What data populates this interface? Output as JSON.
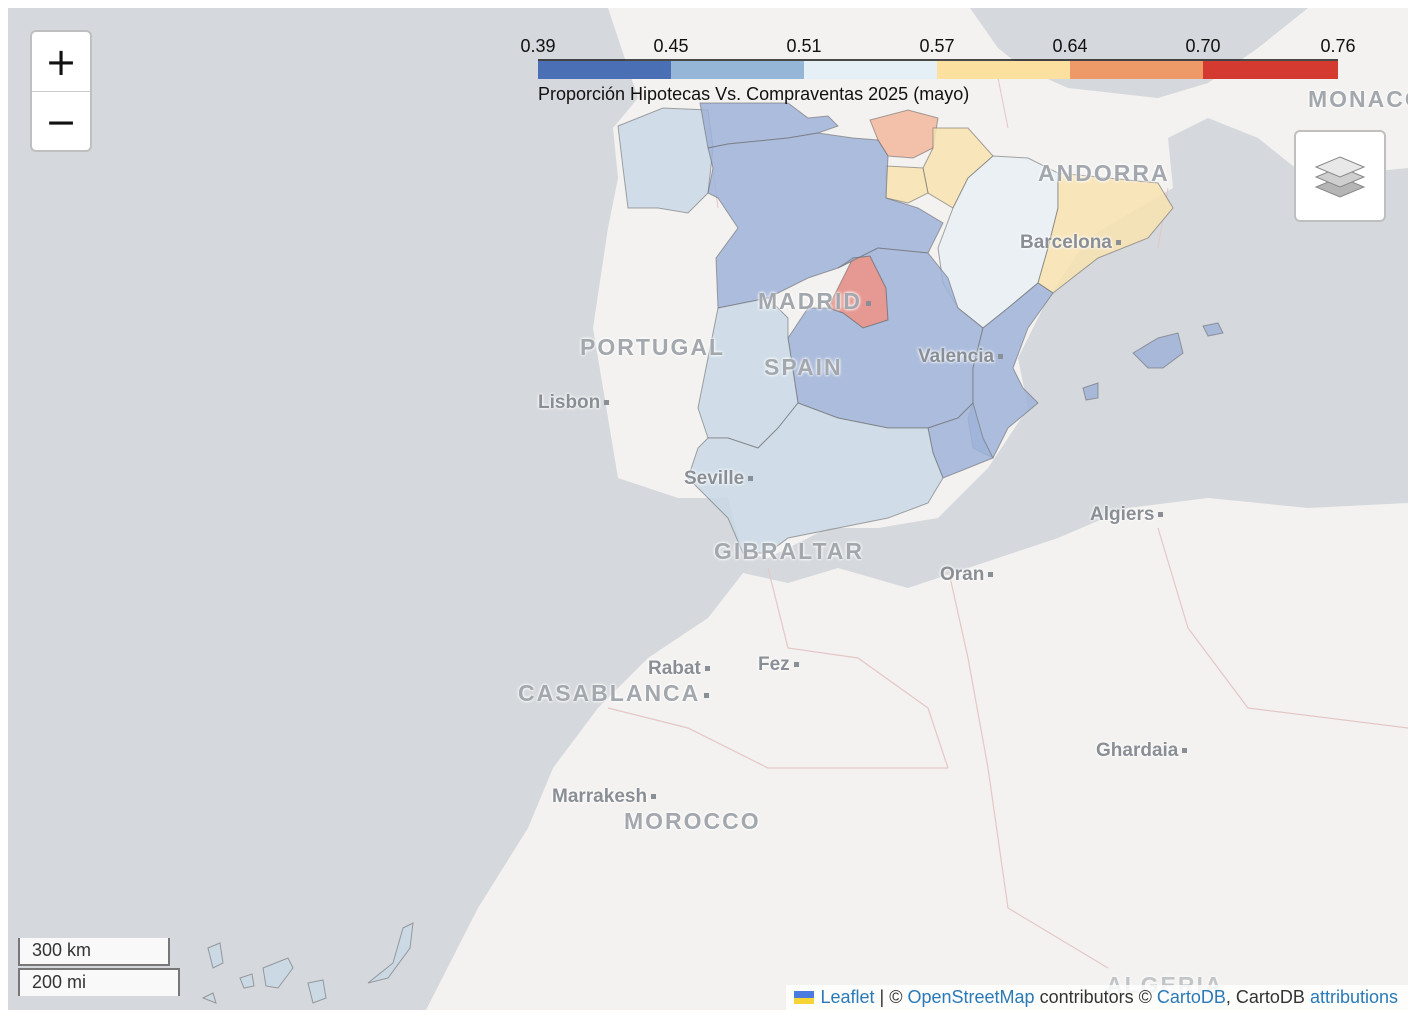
{
  "zoom": {
    "in_label": "+",
    "out_label": "−"
  },
  "layers_icon": "layers-icon",
  "legend": {
    "ticks": [
      "0.39",
      "0.45",
      "0.51",
      "0.57",
      "0.64",
      "0.70",
      "0.76"
    ],
    "colors": [
      "#4a6fb5",
      "#96b6d8",
      "#e4eff6",
      "#fbe0a0",
      "#ee9968",
      "#d43a30"
    ],
    "caption": "Proporción Hipotecas Vs. Compraventas 2025 (mayo)"
  },
  "labels": {
    "monaco": "MONACO",
    "andorra": "ANDORRA",
    "barcelona": "Barcelona",
    "madrid": "MADRID",
    "portugal": "PORTUGAL",
    "spain": "SPAIN",
    "valencia": "Valencia",
    "lisbon": "Lisbon",
    "seville": "Seville",
    "algiers": "Algiers",
    "gibraltar": "GIBRALTAR",
    "oran": "Oran",
    "rabat": "Rabat",
    "fez": "Fez",
    "casablanca": "CASABLANCA",
    "ghardaia": "Ghardaia",
    "marrakesh": "Marrakesh",
    "morocco": "MOROCCO",
    "algeria": "ALGERIA"
  },
  "scale": {
    "km": "300 km",
    "mi": "200 mi"
  },
  "attribution": {
    "leaflet": "Leaflet",
    "sep1": " | © ",
    "osm": "OpenStreetMap",
    "mid": " contributors © ",
    "carto": "CartoDB",
    "mid2": ", CartoDB ",
    "attributions": "attributions"
  }
}
